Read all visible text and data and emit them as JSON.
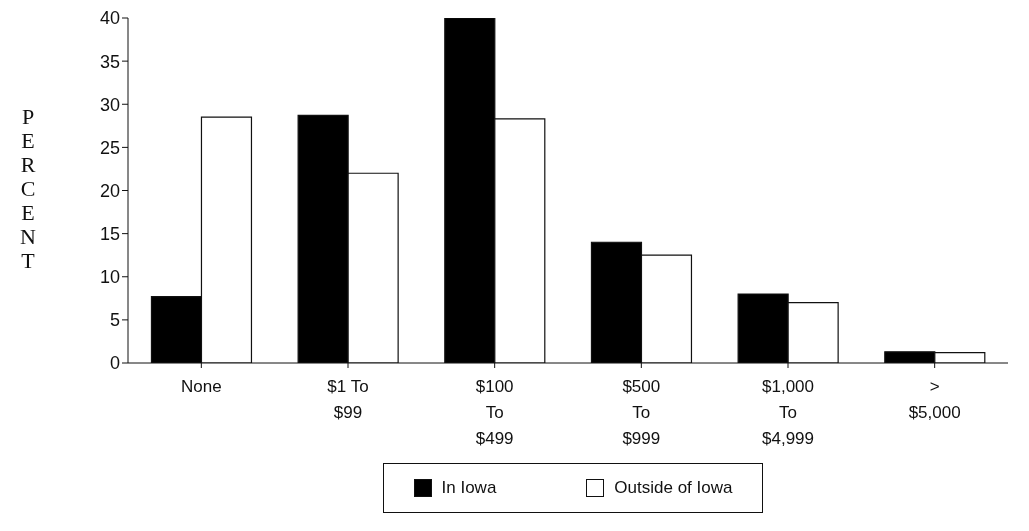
{
  "chart_data": {
    "type": "bar",
    "ylabel": "PERCENT",
    "categories": [
      "None",
      "$1 To $99",
      "$100 To $499",
      "$500 To $999",
      "$1,000 To $4,999",
      "> $5,000"
    ],
    "series": [
      {
        "name": "In Iowa",
        "color": "#000000",
        "values": [
          7.7,
          28.7,
          40,
          14,
          8,
          1.3
        ]
      },
      {
        "name": "Outside of Iowa",
        "color": "#ffffff",
        "values": [
          28.5,
          22,
          28.3,
          12.5,
          7,
          1.2
        ]
      }
    ],
    "ylim": [
      0,
      40
    ],
    "yticks": [
      0,
      5,
      10,
      15,
      20,
      25,
      30,
      35,
      40
    ],
    "grid": false,
    "legend": "bottom"
  }
}
